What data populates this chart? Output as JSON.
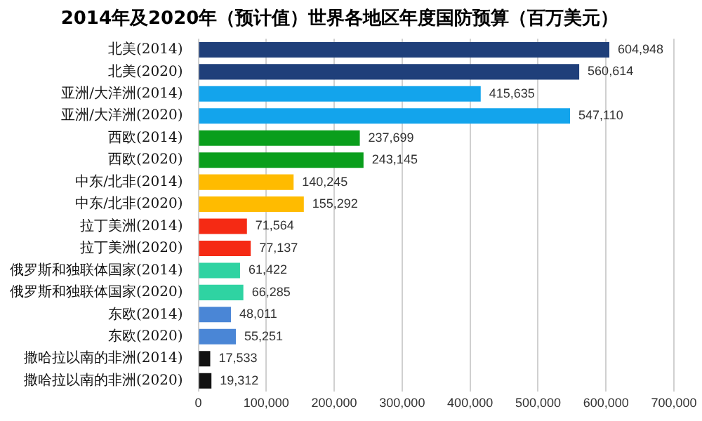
{
  "chart_data": {
    "type": "bar",
    "orientation": "horizontal",
    "title": "2014年及2020年（预计值）世界各地区年度国防预算（百万美元）",
    "categories": [
      "北美(2014)",
      "北美(2020)",
      "亚洲/大洋洲(2014)",
      "亚洲/大洋洲(2020)",
      "西欧(2014)",
      "西欧(2020)",
      "中东/北非(2014)",
      "中东/北非(2020)",
      "拉丁美洲(2014)",
      "拉丁美洲(2020)",
      "俄罗斯和独联体国家(2014)",
      "俄罗斯和独联体国家(2020)",
      "东欧(2014)",
      "东欧(2020)",
      "撒哈拉以南的非洲(2014)",
      "撒哈拉以南的非洲(2020)"
    ],
    "values": [
      604948,
      560614,
      415635,
      547110,
      237699,
      243145,
      140245,
      155292,
      71564,
      77137,
      61422,
      66285,
      48011,
      55251,
      17533,
      19312
    ],
    "value_labels": [
      "604,948",
      "560,614",
      "415,635",
      "547,110",
      "237,699",
      "243,145",
      "140,245",
      "155,292",
      "71,564",
      "77,137",
      "61,422",
      "66,285",
      "48,011",
      "55,251",
      "17,533",
      "19,312"
    ],
    "colors": [
      "#1f3f7a",
      "#1f3f7a",
      "#13a4ec",
      "#13a4ec",
      "#0a9e1c",
      "#0a9e1c",
      "#ffbb00",
      "#ffbb00",
      "#f52a14",
      "#f52a14",
      "#2fd3a2",
      "#2fd3a2",
      "#4a86d6",
      "#4a86d6",
      "#111111",
      "#111111"
    ],
    "xlim": [
      0,
      700000
    ],
    "xticks": [
      {
        "value": 0,
        "label": "0"
      },
      {
        "value": 100000,
        "label": "100,000"
      },
      {
        "value": 200000,
        "label": "200,000"
      },
      {
        "value": 300000,
        "label": "300,000"
      },
      {
        "value": 400000,
        "label": "400,000"
      },
      {
        "value": 500000,
        "label": "500,000"
      },
      {
        "value": 600000,
        "label": "600,000"
      },
      {
        "value": 700000,
        "label": "700,000"
      }
    ],
    "grid": "x",
    "legend": false
  }
}
